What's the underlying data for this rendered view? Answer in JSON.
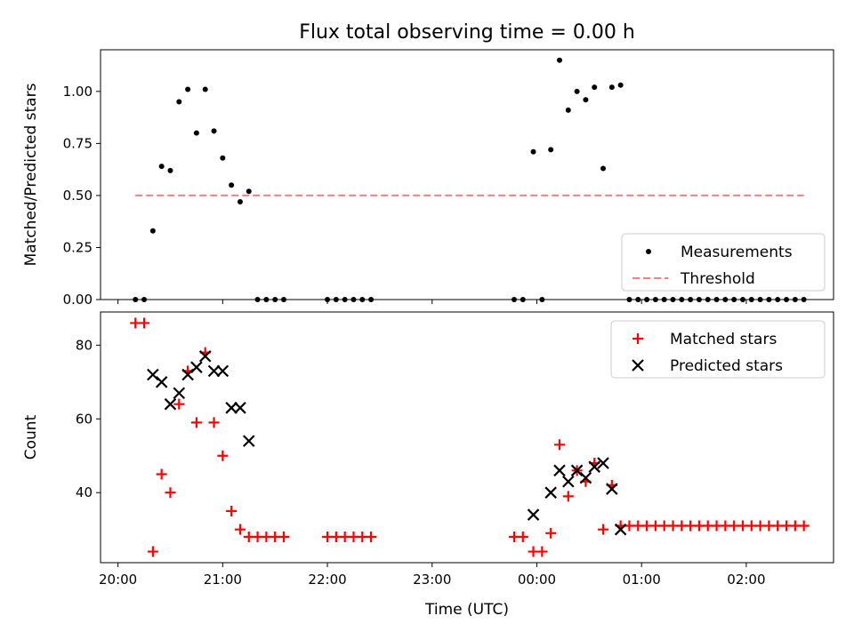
{
  "chart_data": [
    {
      "type": "scatter",
      "title": "Flux total observing time = 0.00 h",
      "ylabel": "Matched/Predicted stars",
      "xlabel": "",
      "xlim": [
        "19:50",
        "02:50"
      ],
      "ylim": [
        0,
        1.2
      ],
      "x_ticks": [
        "20:00",
        "21:00",
        "22:00",
        "23:00",
        "00:00",
        "01:00",
        "02:00"
      ],
      "y_ticks": [
        "0.00",
        "0.25",
        "0.50",
        "0.75",
        "1.00"
      ],
      "legend_position": "lower-right",
      "series": [
        {
          "name": "Measurements",
          "kind": "points",
          "color": "#000000",
          "points": [
            [
              "20:10",
              0
            ],
            [
              "20:15",
              0
            ],
            [
              "20:20",
              0.33
            ],
            [
              "20:25",
              0.64
            ],
            [
              "20:30",
              0.62
            ],
            [
              "20:35",
              0.95
            ],
            [
              "20:40",
              1.01
            ],
            [
              "20:45",
              0.8
            ],
            [
              "20:50",
              1.01
            ],
            [
              "20:55",
              0.81
            ],
            [
              "21:00",
              0.68
            ],
            [
              "21:05",
              0.55
            ],
            [
              "21:10",
              0.47
            ],
            [
              "21:15",
              0.52
            ],
            [
              "21:20",
              0
            ],
            [
              "21:25",
              0
            ],
            [
              "21:30",
              0
            ],
            [
              "21:35",
              0
            ],
            [
              "22:00",
              0
            ],
            [
              "22:05",
              0
            ],
            [
              "22:10",
              0
            ],
            [
              "22:15",
              0
            ],
            [
              "22:20",
              0
            ],
            [
              "22:25",
              0
            ],
            [
              "23:47",
              0
            ],
            [
              "23:52",
              0
            ],
            [
              "23:58",
              0.71
            ],
            [
              "00:03",
              0
            ],
            [
              "00:08",
              0.72
            ],
            [
              "00:13",
              1.15
            ],
            [
              "00:18",
              0.91
            ],
            [
              "00:23",
              1.0
            ],
            [
              "00:28",
              0.96
            ],
            [
              "00:33",
              1.02
            ],
            [
              "00:38",
              0.63
            ],
            [
              "00:43",
              1.02
            ],
            [
              "00:48",
              1.03
            ],
            [
              "00:53",
              0
            ],
            [
              "00:58",
              0
            ],
            [
              "01:03",
              0
            ],
            [
              "01:08",
              0
            ],
            [
              "01:13",
              0
            ],
            [
              "01:18",
              0
            ],
            [
              "01:23",
              0
            ],
            [
              "01:28",
              0
            ],
            [
              "01:33",
              0
            ],
            [
              "01:38",
              0
            ],
            [
              "01:43",
              0
            ],
            [
              "01:48",
              0
            ],
            [
              "01:53",
              0
            ],
            [
              "01:58",
              0
            ],
            [
              "02:03",
              0
            ],
            [
              "02:08",
              0
            ],
            [
              "02:13",
              0
            ],
            [
              "02:18",
              0
            ],
            [
              "02:23",
              0
            ],
            [
              "02:28",
              0
            ],
            [
              "02:33",
              0
            ]
          ]
        },
        {
          "name": "Threshold",
          "kind": "dashed-line",
          "color": "#f08080",
          "points": [
            [
              "20:10",
              0.5
            ],
            [
              "02:33",
              0.5
            ]
          ]
        }
      ]
    },
    {
      "type": "scatter",
      "title": "",
      "ylabel": "Count",
      "xlabel": "Time (UTC)",
      "xlim": [
        "19:50",
        "02:50"
      ],
      "ylim": [
        21,
        89
      ],
      "x_ticks": [
        "20:00",
        "21:00",
        "22:00",
        "23:00",
        "00:00",
        "01:00",
        "02:00"
      ],
      "y_ticks": [
        "40",
        "60",
        "80"
      ],
      "legend_position": "upper-right",
      "series": [
        {
          "name": "Matched stars",
          "kind": "plus",
          "color": "#ff0000",
          "points": [
            [
              "20:10",
              86
            ],
            [
              "20:15",
              86
            ],
            [
              "20:20",
              24
            ],
            [
              "20:25",
              45
            ],
            [
              "20:30",
              40
            ],
            [
              "20:35",
              64
            ],
            [
              "20:40",
              73
            ],
            [
              "20:45",
              59
            ],
            [
              "20:50",
              78
            ],
            [
              "20:55",
              59
            ],
            [
              "21:00",
              50
            ],
            [
              "21:05",
              35
            ],
            [
              "21:10",
              30
            ],
            [
              "21:15",
              28
            ],
            [
              "21:20",
              28
            ],
            [
              "21:25",
              28
            ],
            [
              "21:30",
              28
            ],
            [
              "21:35",
              28
            ],
            [
              "22:00",
              28
            ],
            [
              "22:05",
              28
            ],
            [
              "22:10",
              28
            ],
            [
              "22:15",
              28
            ],
            [
              "22:20",
              28
            ],
            [
              "22:25",
              28
            ],
            [
              "23:47",
              28
            ],
            [
              "23:52",
              28
            ],
            [
              "23:58",
              24
            ],
            [
              "00:03",
              24
            ],
            [
              "00:08",
              29
            ],
            [
              "00:13",
              53
            ],
            [
              "00:18",
              39
            ],
            [
              "00:23",
              46
            ],
            [
              "00:28",
              43
            ],
            [
              "00:33",
              48
            ],
            [
              "00:38",
              30
            ],
            [
              "00:43",
              42
            ],
            [
              "00:48",
              31
            ],
            [
              "00:53",
              31
            ],
            [
              "00:58",
              31
            ],
            [
              "01:03",
              31
            ],
            [
              "01:08",
              31
            ],
            [
              "01:13",
              31
            ],
            [
              "01:18",
              31
            ],
            [
              "01:23",
              31
            ],
            [
              "01:28",
              31
            ],
            [
              "01:33",
              31
            ],
            [
              "01:38",
              31
            ],
            [
              "01:43",
              31
            ],
            [
              "01:48",
              31
            ],
            [
              "01:53",
              31
            ],
            [
              "01:58",
              31
            ],
            [
              "02:03",
              31
            ],
            [
              "02:08",
              31
            ],
            [
              "02:13",
              31
            ],
            [
              "02:18",
              31
            ],
            [
              "02:23",
              31
            ],
            [
              "02:28",
              31
            ],
            [
              "02:33",
              31
            ]
          ]
        },
        {
          "name": "Predicted stars",
          "kind": "cross",
          "color": "#000000",
          "points": [
            [
              "20:20",
              72
            ],
            [
              "20:25",
              70
            ],
            [
              "20:30",
              64
            ],
            [
              "20:35",
              67
            ],
            [
              "20:40",
              72
            ],
            [
              "20:45",
              74
            ],
            [
              "20:50",
              77
            ],
            [
              "20:55",
              73
            ],
            [
              "21:00",
              73
            ],
            [
              "21:05",
              63
            ],
            [
              "21:10",
              63
            ],
            [
              "21:15",
              54
            ],
            [
              "23:58",
              34
            ],
            [
              "00:08",
              40
            ],
            [
              "00:13",
              46
            ],
            [
              "00:18",
              43
            ],
            [
              "00:23",
              46
            ],
            [
              "00:28",
              44
            ],
            [
              "00:33",
              47
            ],
            [
              "00:38",
              48
            ],
            [
              "00:43",
              41
            ],
            [
              "00:48",
              30
            ]
          ]
        }
      ]
    }
  ]
}
